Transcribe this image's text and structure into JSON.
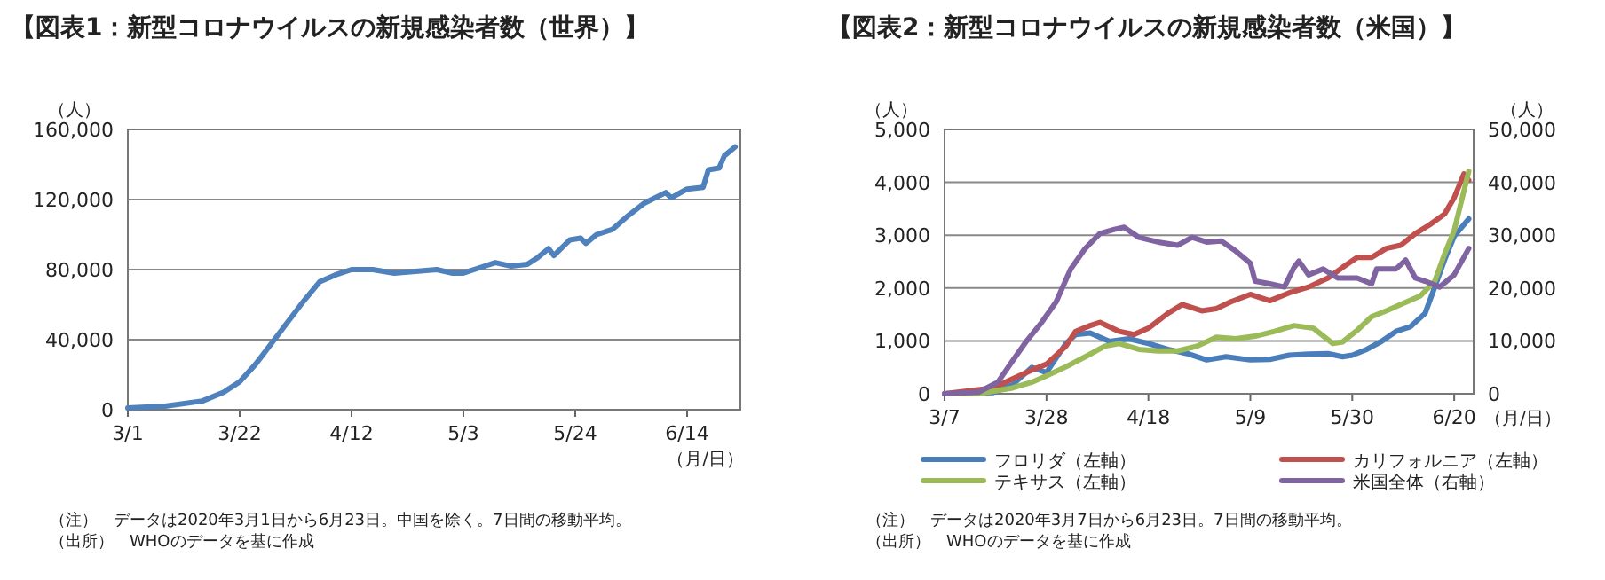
{
  "chart_data": [
    {
      "type": "line",
      "title": "【図表1：新型コロナウイルスの新規感染者数（世界）】",
      "ylabel": "（人）",
      "xlabel": "（月/日）",
      "xlim": [
        "--03-01",
        "--06-24"
      ],
      "xticks": [
        {
          "value": "--03-01",
          "label": "3/1"
        },
        {
          "value": "--03-22",
          "label": "3/22"
        },
        {
          "value": "--04-12",
          "label": "4/12"
        },
        {
          "value": "--05-03",
          "label": "5/3"
        },
        {
          "value": "--05-24",
          "label": "5/24"
        },
        {
          "value": "--06-14",
          "label": "6/14"
        }
      ],
      "ylim": [
        0,
        160000
      ],
      "yticks": [
        0,
        {
          "value": 40000,
          "label": "40,000"
        },
        {
          "value": 80000,
          "label": "80,000"
        },
        {
          "value": 120000,
          "label": "120,000"
        },
        {
          "value": 160000,
          "label": "160,000"
        }
      ],
      "grid": "y",
      "x": [
        "--03-01",
        "--03-08",
        "--03-15",
        "--03-19",
        "--03-22",
        "--03-25",
        "--03-28",
        "--03-31",
        "--04-03",
        "--04-06",
        "--04-09",
        "--04-12",
        "--04-16",
        "--04-20",
        "--04-24",
        "--04-28",
        "--05-01",
        "--05-03",
        "--05-06",
        "--05-09",
        "--05-12",
        "--05-15",
        "--05-17",
        "--05-19",
        "--05-20",
        "--05-23",
        "--05-25",
        "--05-26",
        "--05-28",
        "--05-31",
        "--06-03",
        "--06-06",
        "--06-10",
        "--06-11",
        "--06-14",
        "--06-17",
        "--06-18",
        "--06-20",
        "--06-21",
        "--06-23"
      ],
      "series": [
        {
          "color": "#4f81bd",
          "values": [
            1000,
            2000,
            5000,
            10000,
            16000,
            26000,
            38000,
            50000,
            62000,
            73000,
            77000,
            80000,
            80000,
            78000,
            79000,
            80000,
            78000,
            78000,
            81000,
            84000,
            82000,
            83000,
            87000,
            92000,
            88000,
            97000,
            98000,
            95000,
            100000,
            103000,
            111000,
            118000,
            124000,
            121000,
            126000,
            127000,
            137000,
            138000,
            145000,
            150000
          ]
        }
      ],
      "annotations": [
        "（注）　データは2020年3月1日から6月23日。中国を除く。7日間の移動平均。",
        "（出所）　WHOのデータを基に作成"
      ]
    },
    {
      "type": "line",
      "title": "【図表2：新型コロナウイルスの新規感染者数（米国）】",
      "ylabel": "（人）",
      "y2label": "（人）",
      "xlabel": "（月/日）",
      "xlim": [
        "--03-07",
        "--06-24"
      ],
      "xticks": [
        {
          "value": "--03-07",
          "label": "3/7"
        },
        {
          "value": "--03-28",
          "label": "3/28"
        },
        {
          "value": "--04-18",
          "label": "4/18"
        },
        {
          "value": "--05-09",
          "label": "5/9"
        },
        {
          "value": "--05-30",
          "label": "5/30"
        },
        {
          "value": "--06-20",
          "label": "6/20"
        }
      ],
      "ylim": [
        0,
        5000
      ],
      "yticks": [
        0,
        {
          "value": 1000,
          "label": "1,000"
        },
        {
          "value": 2000,
          "label": "2,000"
        },
        {
          "value": 3000,
          "label": "3,000"
        },
        {
          "value": 4000,
          "label": "4,000"
        },
        {
          "value": 5000,
          "label": "5,000"
        }
      ],
      "y2lim": [
        0,
        50000
      ],
      "y2ticks": [
        0,
        {
          "value": 10000,
          "label": "10,000"
        },
        {
          "value": 20000,
          "label": "20,000"
        },
        {
          "value": 30000,
          "label": "30,000"
        },
        {
          "value": 40000,
          "label": "40,000"
        },
        {
          "value": 50000,
          "label": "50,000"
        }
      ],
      "grid": "y",
      "legend": "bottom",
      "series": [
        {
          "name": "フロリダ（左軸）",
          "color": "#4a7ebb",
          "x": [
            "--03-07",
            "--03-17",
            "--03-21",
            "--03-25",
            "--03-28",
            "--04-01",
            "--04-03",
            "--04-06",
            "--04-10",
            "--04-14",
            "--04-18",
            "--04-22",
            "--04-26",
            "--04-30",
            "--05-04",
            "--05-09",
            "--05-13",
            "--05-17",
            "--05-21",
            "--05-25",
            "--05-28",
            "--05-30",
            "--06-02",
            "--06-05",
            "--06-08",
            "--06-11",
            "--06-14",
            "--06-16",
            "--06-18",
            "--06-20",
            "--06-23"
          ],
          "values": [
            0,
            20,
            170,
            500,
            400,
            950,
            1120,
            1150,
            990,
            1040,
            950,
            840,
            760,
            640,
            700,
            640,
            650,
            730,
            750,
            760,
            700,
            730,
            840,
            990,
            1180,
            1270,
            1520,
            2020,
            2530,
            2980,
            3310
          ]
        },
        {
          "name": "カリフォルニア（左軸）",
          "color": "#c0504d",
          "x": [
            "--03-07",
            "--03-17",
            "--03-21",
            "--03-25",
            "--03-28",
            "--04-01",
            "--04-03",
            "--04-06",
            "--04-08",
            "--04-12",
            "--04-15",
            "--04-18",
            "--04-22",
            "--04-25",
            "--04-29",
            "--05-02",
            "--05-05",
            "--05-09",
            "--05-13",
            "--05-17",
            "--05-21",
            "--05-25",
            "--05-28",
            "--05-31",
            "--06-03",
            "--06-06",
            "--06-09",
            "--06-12",
            "--06-15",
            "--06-18",
            "--06-20",
            "--06-22",
            "--06-23"
          ],
          "values": [
            0,
            110,
            280,
            450,
            560,
            900,
            1180,
            1290,
            1350,
            1180,
            1120,
            1240,
            1520,
            1690,
            1570,
            1610,
            1740,
            1880,
            1760,
            1910,
            2020,
            2190,
            2390,
            2580,
            2580,
            2750,
            2810,
            3030,
            3200,
            3400,
            3710,
            4160,
            4040
          ]
        },
        {
          "name": "テキサス（左軸）",
          "color": "#9bbb59",
          "x": [
            "--03-07",
            "--03-14",
            "--03-21",
            "--03-25",
            "--03-28",
            "--04-01",
            "--04-05",
            "--04-09",
            "--04-12",
            "--04-16",
            "--04-20",
            "--04-24",
            "--04-28",
            "--05-02",
            "--05-06",
            "--05-10",
            "--05-14",
            "--05-18",
            "--05-22",
            "--05-26",
            "--05-28",
            "--05-31",
            "--06-03",
            "--06-06",
            "--06-09",
            "--06-13",
            "--06-16",
            "--06-18",
            "--06-20",
            "--06-23"
          ],
          "values": [
            0,
            0,
            110,
            220,
            340,
            510,
            700,
            900,
            950,
            840,
            810,
            810,
            900,
            1070,
            1040,
            1090,
            1180,
            1290,
            1240,
            950,
            980,
            1200,
            1460,
            1570,
            1690,
            1850,
            2130,
            2640,
            3090,
            4210
          ]
        },
        {
          "name": "米国全体（右軸）",
          "color": "#8064a2",
          "axis": "y2",
          "x": [
            "--03-07",
            "--03-14",
            "--03-18",
            "--03-21",
            "--03-24",
            "--03-27",
            "--03-30",
            "--04-02",
            "--04-05",
            "--04-08",
            "--04-11",
            "--04-13",
            "--04-16",
            "--04-20",
            "--04-24",
            "--04-27",
            "--04-30",
            "--05-03",
            "--05-06",
            "--05-09",
            "--05-10",
            "--05-13",
            "--05-16",
            "--05-18",
            "--05-19",
            "--05-21",
            "--05-24",
            "--05-27",
            "--05-31",
            "--06-03",
            "--06-04",
            "--06-08",
            "--06-10",
            "--06-12",
            "--06-14",
            "--06-17",
            "--06-20",
            "--06-23"
          ],
          "values": [
            0,
            300,
            2200,
            6200,
            10100,
            13500,
            17400,
            23600,
            27500,
            30300,
            31100,
            31500,
            29600,
            28700,
            28100,
            29600,
            28700,
            28900,
            27000,
            24700,
            21300,
            20800,
            20200,
            23900,
            25100,
            22500,
            23600,
            21900,
            21900,
            20800,
            23600,
            23600,
            25300,
            21900,
            21300,
            20200,
            22500,
            27500
          ]
        }
      ],
      "annotations": [
        "（注）　データは2020年3月7日から6月23日。7日間の移動平均。",
        "（出所）　WHOのデータを基に作成"
      ]
    }
  ]
}
